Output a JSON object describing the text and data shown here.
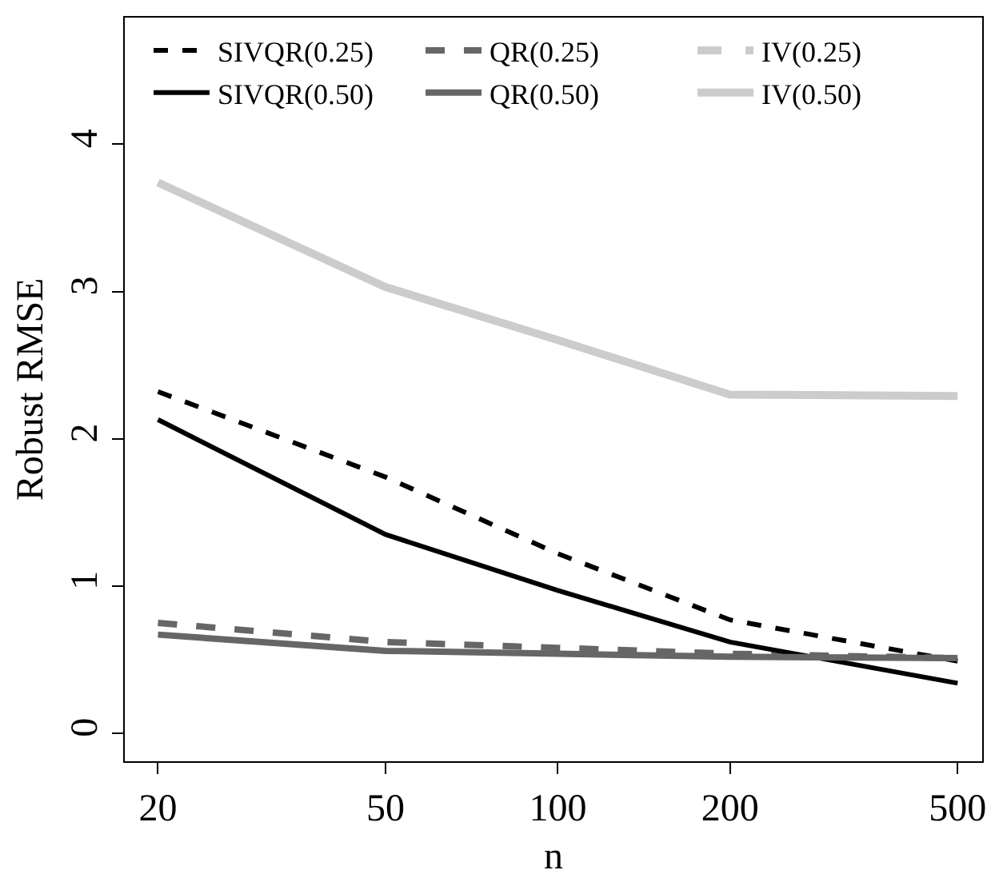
{
  "chart_data": {
    "type": "line",
    "xlabel": "n",
    "ylabel": "Robust RMSE",
    "x": [
      20,
      50,
      100,
      200,
      500
    ],
    "log": "x",
    "xlim": [
      17.5,
      552
    ],
    "xticks": [
      20,
      50,
      100,
      200,
      500
    ],
    "ylim": [
      -0.19,
      4.86
    ],
    "yticks": [
      0,
      1,
      2,
      3,
      4
    ],
    "legend": "top",
    "marker": "none",
    "series": [
      {
        "name": "SIVQR(0.25)",
        "color": "#000000",
        "line_style": "dashed",
        "values": [
          2.32,
          1.74,
          1.22,
          0.77,
          0.49
        ]
      },
      {
        "name": "QR(0.25)",
        "color": "#666666",
        "line_style": "dashed",
        "values": [
          0.75,
          0.62,
          0.58,
          0.54,
          0.51
        ]
      },
      {
        "name": "IV(0.25)",
        "color": "#cccccc",
        "line_style": "dashed",
        "values": [
          null,
          null,
          null,
          null,
          null
        ]
      },
      {
        "name": "SIVQR(0.50)",
        "color": "#000000",
        "line_style": "solid",
        "values": [
          2.13,
          1.35,
          0.97,
          0.62,
          0.34
        ]
      },
      {
        "name": "QR(0.50)",
        "color": "#666666",
        "line_style": "solid",
        "values": [
          0.67,
          0.56,
          0.54,
          0.52,
          0.51
        ]
      },
      {
        "name": "IV(0.50)",
        "color": "#cccccc",
        "line_style": "solid",
        "values": [
          3.74,
          3.03,
          2.67,
          2.3,
          2.29
        ]
      }
    ]
  }
}
